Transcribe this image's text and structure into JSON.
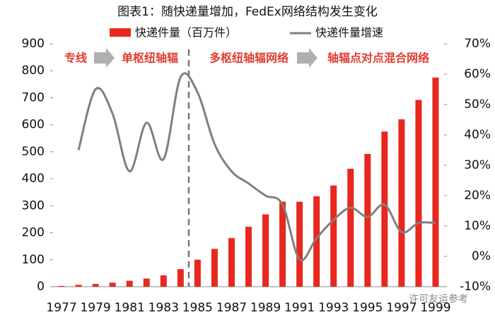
{
  "chart_data": {
    "type": "bar",
    "title": "图表1：随快递量增加，FedEx网络结构发生变化",
    "categories": [
      "1977",
      null,
      "1979",
      null,
      "1981",
      null,
      "1983",
      null,
      "1985",
      null,
      "1987",
      null,
      "1989",
      null,
      "1991",
      null,
      "1993",
      null,
      "1995",
      null,
      "1997",
      null,
      "1999"
    ],
    "series": [
      {
        "name": "快递件量（百万件）",
        "type": "bar",
        "color": "#e8281e",
        "values": [
          3,
          7,
          10,
          15,
          22,
          30,
          42,
          65,
          100,
          140,
          180,
          222,
          268,
          315,
          315,
          335,
          375,
          437,
          492,
          575,
          620,
          692,
          775
        ]
      },
      {
        "name": "快递件量增速",
        "type": "line",
        "axis": "y2",
        "color": "#7f7f7f",
        "values": [
          null,
          35,
          55,
          47,
          28,
          44,
          32,
          59,
          54,
          37,
          28,
          24,
          20,
          17,
          -1,
          6,
          12,
          16,
          13,
          17,
          8,
          11,
          11
        ]
      }
    ],
    "ylim": [
      0,
      900
    ],
    "yticks": [
      0,
      100,
      200,
      300,
      400,
      500,
      600,
      700,
      800,
      900
    ],
    "y2lim": [
      -10,
      70
    ],
    "y2ticks": [
      {
        "value": -10,
        "label": "-10%"
      },
      {
        "value": 0,
        "label": "0%"
      },
      {
        "value": 10,
        "label": "10%"
      },
      {
        "value": 20,
        "label": "20%"
      },
      {
        "value": 30,
        "label": "30%"
      },
      {
        "value": 40,
        "label": "40%"
      },
      {
        "value": 50,
        "label": "50%"
      },
      {
        "value": 60,
        "label": "60%"
      },
      {
        "value": 70,
        "label": "70%"
      }
    ],
    "annotations": [
      "专线",
      "单枢纽轴辐",
      "多枢纽轴辐网络",
      "轴辐点对点混合网络"
    ],
    "watermark": "许可友运参考",
    "legend": "top"
  }
}
